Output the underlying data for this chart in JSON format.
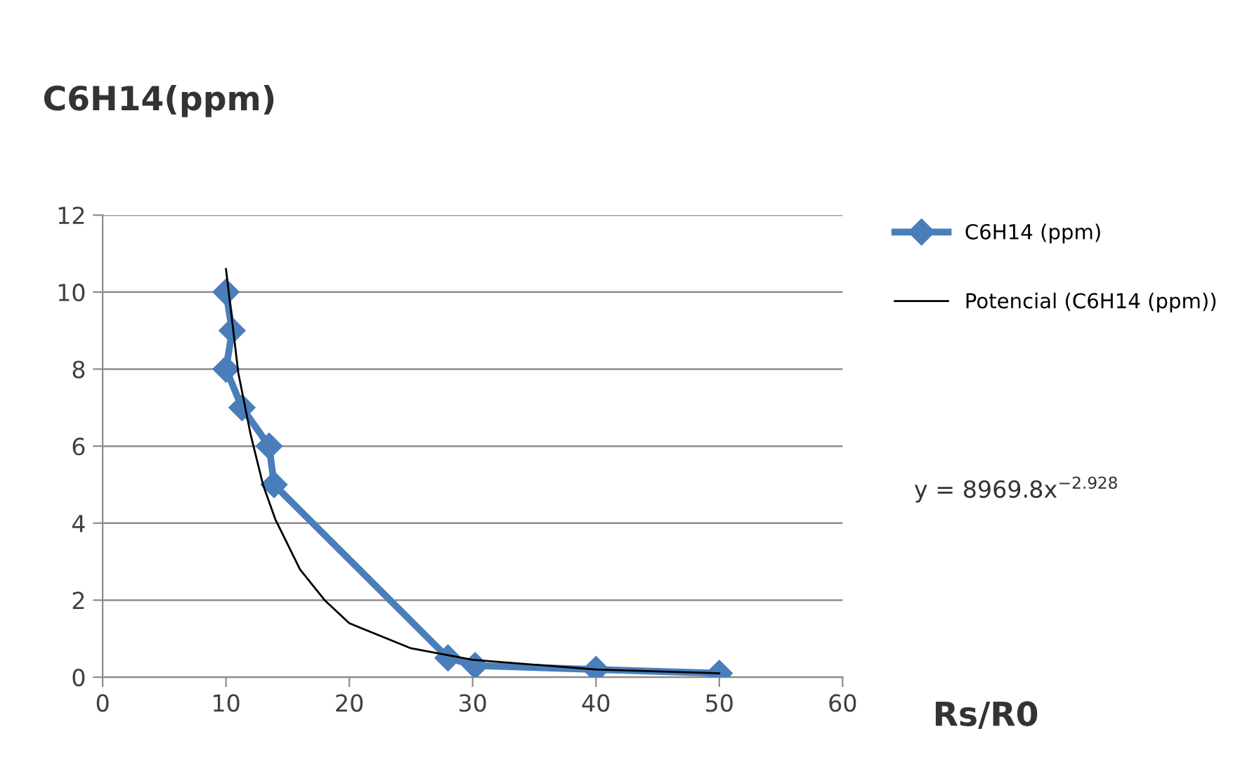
{
  "chart_data": {
    "type": "line",
    "title": "C6H14(ppm)",
    "xlabel": "Rs/R0",
    "xlim": [
      0,
      60
    ],
    "xticks": [
      0,
      10,
      20,
      30,
      40,
      50,
      60
    ],
    "ylim": [
      0,
      12
    ],
    "yticks": [
      0,
      2,
      4,
      6,
      8,
      10,
      12
    ],
    "grid": "y",
    "legend": "right",
    "series": [
      {
        "name": "C6H14 (ppm)",
        "color": "#4a7ebb",
        "marker": "diamond",
        "line_style": "solid",
        "x": [
          10,
          10.5,
          10,
          11.3,
          13.5,
          13.9,
          28,
          30.2,
          40,
          50
        ],
        "values": [
          10,
          9,
          8,
          7,
          6,
          5,
          0.5,
          0.3,
          0.2,
          0.1
        ]
      },
      {
        "name": "Potencial (C6H14 (ppm))",
        "color": "#000000",
        "marker": "none",
        "line_style": "solid",
        "x": [
          10,
          11,
          12,
          13,
          14,
          16,
          18,
          20,
          25,
          30,
          40,
          50
        ],
        "values": [
          10.6,
          7.9,
          6.3,
          5.0,
          4.1,
          2.8,
          2.0,
          1.4,
          0.75,
          0.45,
          0.2,
          0.1
        ]
      }
    ],
    "annotations": [
      "y = 8969.8x$^{−2.928}$"
    ]
  }
}
